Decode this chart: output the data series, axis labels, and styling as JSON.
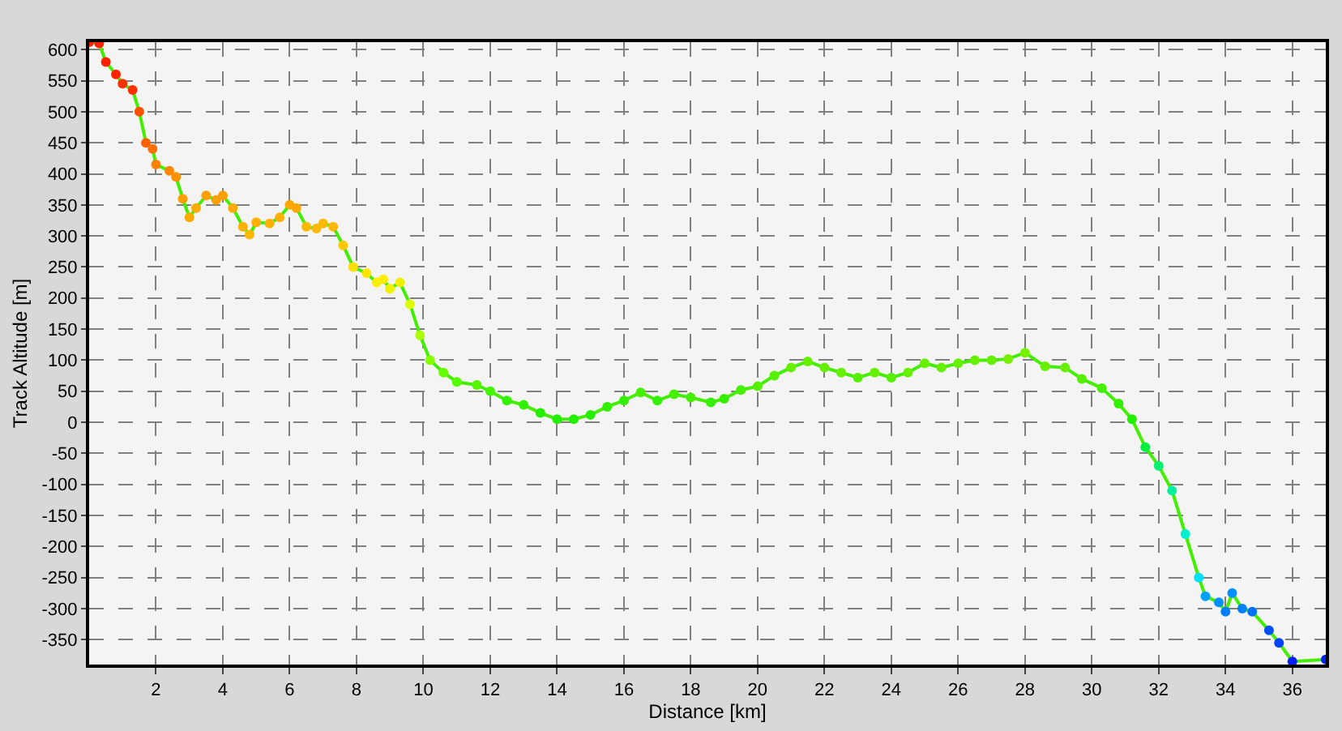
{
  "chart_data": {
    "type": "line",
    "xlabel": "Distance [km]",
    "ylabel": "Track Altitude [m]",
    "xlim": [
      0,
      37
    ],
    "xticks": [
      2,
      4,
      6,
      8,
      10,
      12,
      14,
      16,
      18,
      20,
      22,
      24,
      26,
      28,
      30,
      32,
      34,
      36
    ],
    "ylim": [
      -390,
      612
    ],
    "yticks": [
      -350,
      -300,
      -250,
      -200,
      -150,
      -100,
      -50,
      0,
      50,
      100,
      150,
      200,
      250,
      300,
      350,
      400,
      450,
      500,
      550,
      600
    ],
    "grid": true,
    "marker": "circle",
    "line_style": "solid",
    "series": [
      {
        "color": "#44ee00",
        "x": [
          0,
          0.3,
          0.5,
          0.8,
          1.0,
          1.3,
          1.5,
          1.7,
          1.9,
          2.0,
          2.4,
          2.6,
          2.8,
          3.0,
          3.2,
          3.5,
          3.8,
          4.0,
          4.3,
          4.6,
          4.8,
          5.0,
          5.4,
          5.7,
          6.0,
          6.2,
          6.5,
          6.8,
          7.0,
          7.3,
          7.6,
          7.9,
          8.3,
          8.6,
          8.8,
          9.0,
          9.3,
          9.6,
          9.9,
          10.2,
          10.6,
          11.0,
          11.6,
          12.0,
          12.5,
          13.0,
          13.5,
          14.0,
          14.5,
          15.0,
          15.5,
          16.0,
          16.5,
          17.0,
          17.5,
          18.0,
          18.6,
          19.0,
          19.5,
          20.0,
          20.5,
          21.0,
          21.5,
          22.0,
          22.5,
          23.0,
          23.5,
          24.0,
          24.5,
          25.0,
          25.5,
          26.0,
          26.5,
          27.0,
          27.5,
          28.0,
          28.6,
          29.2,
          29.7,
          30.3,
          30.8,
          31.2,
          31.6,
          32.0,
          32.4,
          32.8,
          33.2,
          33.4,
          33.8,
          34.0,
          34.2,
          34.5,
          34.8,
          35.3,
          35.6,
          36.0,
          37.0
        ],
        "values": [
          612,
          610,
          580,
          560,
          545,
          535,
          500,
          450,
          440,
          415,
          405,
          395,
          360,
          330,
          345,
          365,
          358,
          365,
          345,
          315,
          302,
          322,
          320,
          330,
          350,
          345,
          315,
          312,
          320,
          315,
          285,
          250,
          240,
          225,
          230,
          215,
          225,
          190,
          140,
          100,
          80,
          65,
          60,
          50,
          35,
          28,
          15,
          5,
          5,
          12,
          25,
          35,
          48,
          35,
          45,
          40,
          32,
          38,
          52,
          58,
          75,
          88,
          98,
          88,
          80,
          72,
          80,
          72,
          80,
          95,
          88,
          95,
          100,
          100,
          102,
          112,
          90,
          88,
          70,
          55,
          30,
          5,
          -40,
          -70,
          -110,
          -180,
          -250,
          -280,
          -290,
          -305,
          -275,
          -300,
          -305,
          -335,
          -355,
          -385,
          -382
        ],
        "colors": [
          "#ff2000",
          "#ff2000",
          "#ff2000",
          "#ff2000",
          "#ff3000",
          "#ff3000",
          "#ff5000",
          "#ff6000",
          "#ff7000",
          "#ff8000",
          "#ff8800",
          "#ff9000",
          "#ffa000",
          "#ffaa00",
          "#ffaa00",
          "#ffa000",
          "#ffa000",
          "#ffa000",
          "#ffaa00",
          "#ffb000",
          "#ffb800",
          "#ffb000",
          "#ffb000",
          "#ffb000",
          "#ffa800",
          "#ffa800",
          "#ffb800",
          "#ffb800",
          "#ffb800",
          "#ffb800",
          "#ffc800",
          "#ffdd00",
          "#ffe400",
          "#ffee00",
          "#ffee00",
          "#f0f000",
          "#f0f000",
          "#ddff00",
          "#aaff00",
          "#88ff00",
          "#66ff00",
          "#55ff00",
          "#55f500",
          "#44f500",
          "#33f000",
          "#33f000",
          "#22f000",
          "#22f000",
          "#22f000",
          "#22f000",
          "#33f000",
          "#33f000",
          "#44f000",
          "#33f000",
          "#44f000",
          "#44f000",
          "#33f000",
          "#33f000",
          "#44f000",
          "#55f000",
          "#55f000",
          "#66f000",
          "#66f000",
          "#66f000",
          "#66f000",
          "#55f000",
          "#66f000",
          "#55f000",
          "#66f000",
          "#66f000",
          "#66f000",
          "#66f000",
          "#66f000",
          "#66f000",
          "#77f000",
          "#77f000",
          "#66f000",
          "#66f000",
          "#55f000",
          "#44f000",
          "#33f000",
          "#22f000",
          "#00f040",
          "#00f070",
          "#00f0a0",
          "#00f0d0",
          "#00e0ff",
          "#00a0ff",
          "#0090ff",
          "#0080ff",
          "#0090ff",
          "#0080ff",
          "#0070ff",
          "#0050ff",
          "#0040ff",
          "#0020ff",
          "#0020ff"
        ]
      }
    ]
  }
}
